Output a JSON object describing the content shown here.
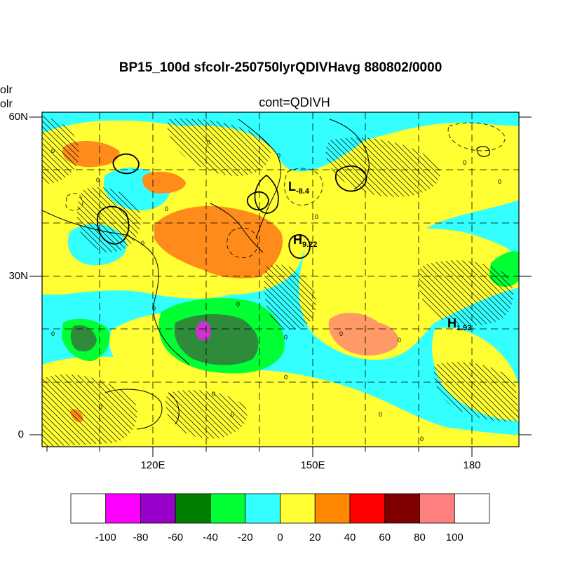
{
  "title": "BP15_100d sfcolr-250750lyrQDIVHavg  880802/0000",
  "subtitle": "cont=QDIVH",
  "left_cut_labels": [
    "olr",
    "olr"
  ],
  "lat_labels": [
    "60N",
    "30N",
    "0"
  ],
  "lon_labels": [
    "120E",
    "150E",
    "180"
  ],
  "pressure_labels": [
    {
      "letter": "L",
      "value": "-8.4"
    },
    {
      "letter": "H",
      "value": "9.22"
    },
    {
      "letter": "H",
      "value": "1.93"
    }
  ],
  "colorbar": {
    "colors": [
      "#ffffff",
      "#ff00ff",
      "#9900cc",
      "#008000",
      "#00ff33",
      "#33ffff",
      "#ffff33",
      "#ff8800",
      "#ff0000",
      "#800000",
      "#ff7f7f",
      "#ffffff"
    ],
    "labels": [
      "-100",
      "-80",
      "-60",
      "-40",
      "-20",
      "0",
      "20",
      "40",
      "60",
      "80",
      "100"
    ]
  },
  "map_colors": {
    "cyan": "#33ffff",
    "yellow": "#ffff33",
    "orange": "#ff8c1a",
    "salmon": "#ff9966",
    "green": "#00ff33",
    "darkgreen": "#2e8b3a",
    "magenta": "#cc33cc"
  }
}
